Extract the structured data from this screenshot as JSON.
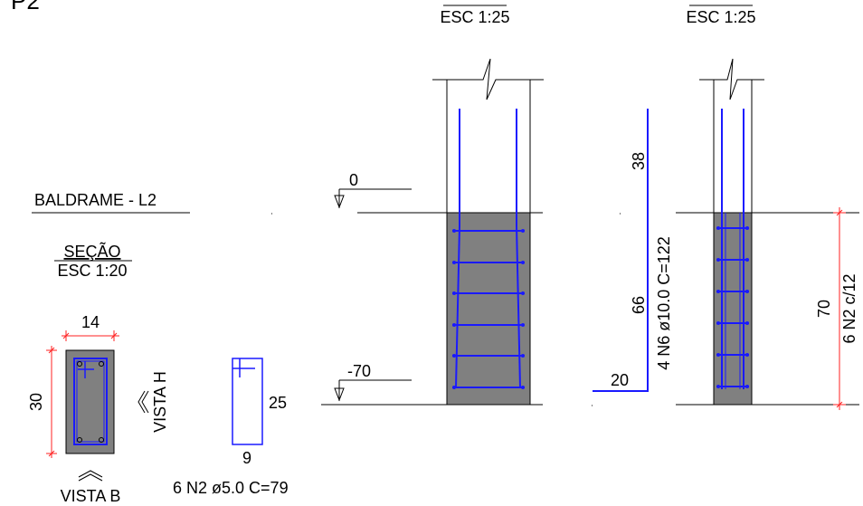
{
  "sheet_title": "P2",
  "view_scales": {
    "view_a": "ESC 1:25",
    "view_b": "ESC 1:25"
  },
  "beam": {
    "title": "BALDRAME - L2",
    "section_title": "SEÇÃO",
    "section_scale": "ESC 1:20",
    "width": "14",
    "height": "30",
    "vista_h": "VISTA H",
    "vista_b": "VISTA B"
  },
  "stirrup": {
    "height": "25",
    "width": "9",
    "label": "6 N2 ø5.0  C=79"
  },
  "levels": {
    "top": "0",
    "bottom": "-70"
  },
  "bar_n6": {
    "seg_top": "38",
    "seg_mid": "66",
    "seg_hook": "20",
    "label": "4 N6 ø10.0  C=122"
  },
  "stirrup_dim": {
    "length": "70",
    "label": "6 N2 c/12"
  },
  "colors": {
    "rebar": "#1a1aff",
    "dimension": "#ff2020",
    "concrete": "#808080"
  }
}
